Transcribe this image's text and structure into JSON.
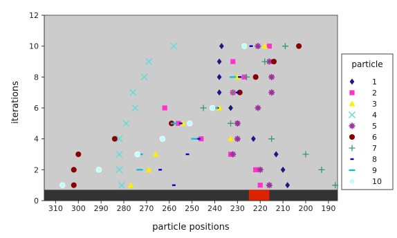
{
  "chart_data": {
    "type": "scatter",
    "title": "",
    "xlabel": "particle positions",
    "ylabel": "iterations",
    "xlim": [
      315,
      186
    ],
    "x_reversed": true,
    "ylim": [
      0,
      12
    ],
    "xticks": [
      310,
      300,
      290,
      280,
      270,
      260,
      250,
      240,
      230,
      220,
      210,
      200,
      190
    ],
    "yticks": [
      0,
      2,
      4,
      6,
      8,
      10,
      12
    ],
    "grid": false,
    "background": "#cccccc",
    "legend": {
      "title": "particle",
      "placement": "right"
    },
    "domain_band": {
      "y_top": 0.7,
      "color": "#333333",
      "highlight_x": [
        225,
        216
      ],
      "highlight_color": "#dd2200"
    },
    "series": [
      {
        "name": "1",
        "marker": "diamond",
        "color": "#1a1a80",
        "points": [
          [
            237,
            10
          ],
          [
            238,
            9
          ],
          [
            238,
            8
          ],
          [
            238,
            7
          ],
          [
            233,
            6
          ],
          [
            230,
            5
          ],
          [
            223,
            4
          ],
          [
            213,
            3
          ],
          [
            210,
            2
          ],
          [
            208,
            1
          ]
        ]
      },
      {
        "name": "2",
        "marker": "square",
        "color": "#ff33cc",
        "points": [
          [
            216,
            10
          ],
          [
            232,
            9
          ],
          [
            227,
            8
          ],
          [
            232,
            7
          ],
          [
            262,
            6
          ],
          [
            256,
            5
          ],
          [
            246,
            4
          ],
          [
            233,
            3
          ],
          [
            222,
            2
          ],
          [
            220,
            1
          ]
        ]
      },
      {
        "name": "3",
        "marker": "triangle",
        "color": "#ffee00",
        "points": [
          [
            218,
            10
          ],
          [
            230,
            8
          ],
          [
            238,
            6
          ],
          [
            254,
            5
          ],
          [
            233,
            4
          ],
          [
            266,
            3
          ],
          [
            269,
            2
          ],
          [
            277,
            1
          ]
        ]
      },
      {
        "name": "4",
        "marker": "x",
        "color": "#66d9d9",
        "points": [
          [
            258,
            10
          ],
          [
            269,
            9
          ],
          [
            271,
            8
          ],
          [
            276,
            7
          ],
          [
            275,
            6
          ],
          [
            279,
            5
          ],
          [
            282,
            4
          ],
          [
            282,
            3
          ],
          [
            282,
            2
          ],
          [
            281,
            1
          ]
        ]
      },
      {
        "name": "5",
        "marker": "star",
        "color": "#993399",
        "points": [
          [
            221,
            10
          ],
          [
            216,
            9
          ],
          [
            215,
            8
          ],
          [
            215,
            7
          ],
          [
            221,
            6
          ],
          [
            230,
            5
          ],
          [
            230,
            4
          ],
          [
            232,
            3
          ],
          [
            220,
            2
          ],
          [
            216,
            1
          ]
        ]
      },
      {
        "name": "6",
        "marker": "circle",
        "color": "#880000",
        "points": [
          [
            203,
            10
          ],
          [
            214,
            9
          ],
          [
            222,
            8
          ],
          [
            229,
            7
          ],
          [
            259,
            5
          ],
          [
            284,
            4
          ],
          [
            300,
            3
          ],
          [
            302,
            2
          ],
          [
            302,
            1
          ]
        ]
      },
      {
        "name": "7",
        "marker": "plus",
        "color": "#339966",
        "points": [
          [
            209,
            10
          ],
          [
            218,
            9
          ],
          [
            226,
            8
          ],
          [
            232,
            7
          ],
          [
            245,
            6
          ],
          [
            233,
            5
          ],
          [
            215,
            4
          ],
          [
            200,
            3
          ],
          [
            193,
            2
          ],
          [
            187,
            1
          ]
        ]
      },
      {
        "name": "8",
        "marker": "hbar",
        "color": "#0000cc",
        "points": [
          [
            224,
            10
          ],
          [
            229,
            8
          ],
          [
            230,
            7
          ],
          [
            239,
            6
          ],
          [
            255,
            5
          ],
          [
            247,
            4
          ],
          [
            252,
            3
          ],
          [
            264,
            2
          ],
          [
            258,
            1
          ]
        ]
      },
      {
        "name": "9",
        "marker": "hdash",
        "color": "#11bbdd",
        "points": [
          [
            227,
            10
          ],
          [
            232,
            8
          ],
          [
            240,
            6
          ],
          [
            258,
            5
          ],
          [
            249,
            4
          ],
          [
            273,
            3
          ],
          [
            273,
            2
          ]
        ]
      },
      {
        "name": "10",
        "marker": "circle-light",
        "color": "#bbffff",
        "points": [
          [
            227,
            10
          ],
          [
            241,
            6
          ],
          [
            251,
            5
          ],
          [
            263,
            4
          ],
          [
            274,
            3
          ],
          [
            291,
            2
          ],
          [
            307,
            1
          ]
        ]
      }
    ]
  }
}
